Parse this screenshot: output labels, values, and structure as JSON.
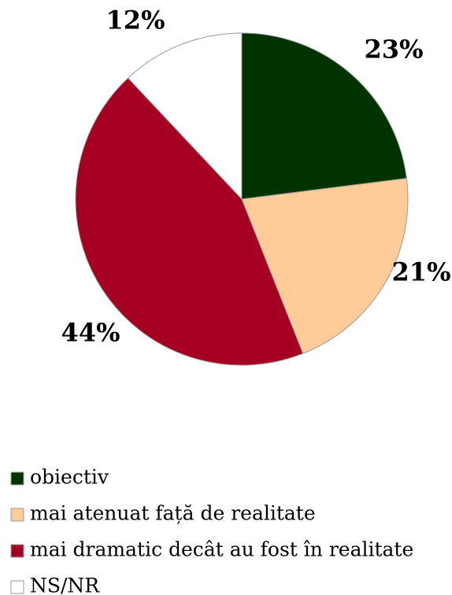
{
  "chart_data": {
    "type": "pie",
    "categories": [
      "obiectiv",
      "mai atenuat față de realitate",
      "mai dramatic decât au fost în realitate",
      "NS/NR"
    ],
    "values": [
      23,
      21,
      44,
      12
    ],
    "value_labels": [
      "23%",
      "21%",
      "44%",
      "12%"
    ],
    "colors": [
      "#003300",
      "#ffcc99",
      "#a50021",
      "#ffffff"
    ],
    "legend": "bottom"
  }
}
